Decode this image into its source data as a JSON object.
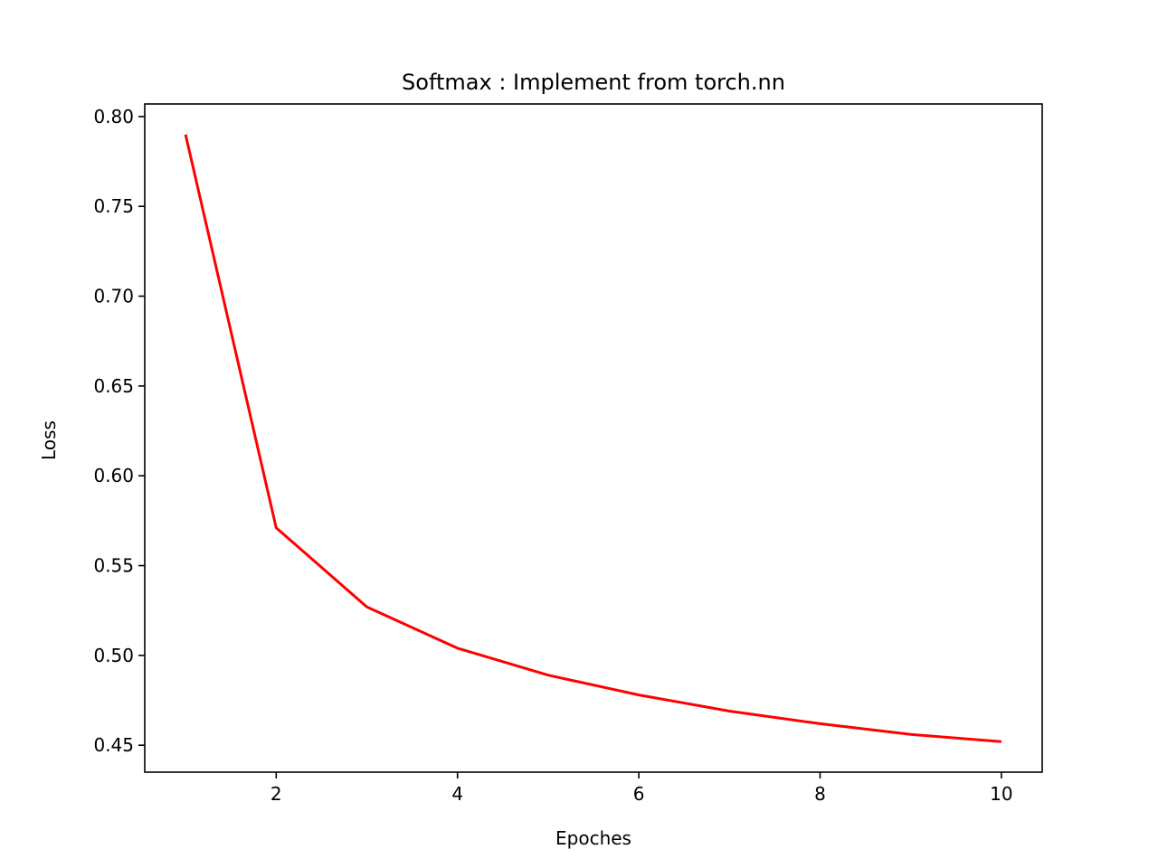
{
  "chart_data": {
    "type": "line",
    "title": "Softmax : Implement from torch.nn",
    "xlabel": "Epoches",
    "ylabel": "Loss",
    "xlim": [
      0.55,
      10.45
    ],
    "ylim": [
      0.435,
      0.807
    ],
    "xticks": [
      2,
      4,
      6,
      8,
      10
    ],
    "yticks": [
      0.45,
      0.5,
      0.55,
      0.6,
      0.65,
      0.7,
      0.75,
      0.8
    ],
    "grid": false,
    "series": [
      {
        "color": "#ff0000",
        "x": [
          1,
          2,
          3,
          4,
          5,
          6,
          7,
          8,
          9,
          10
        ],
        "y": [
          0.79,
          0.571,
          0.527,
          0.504,
          0.489,
          0.478,
          0.469,
          0.462,
          0.456,
          0.452
        ]
      }
    ]
  }
}
